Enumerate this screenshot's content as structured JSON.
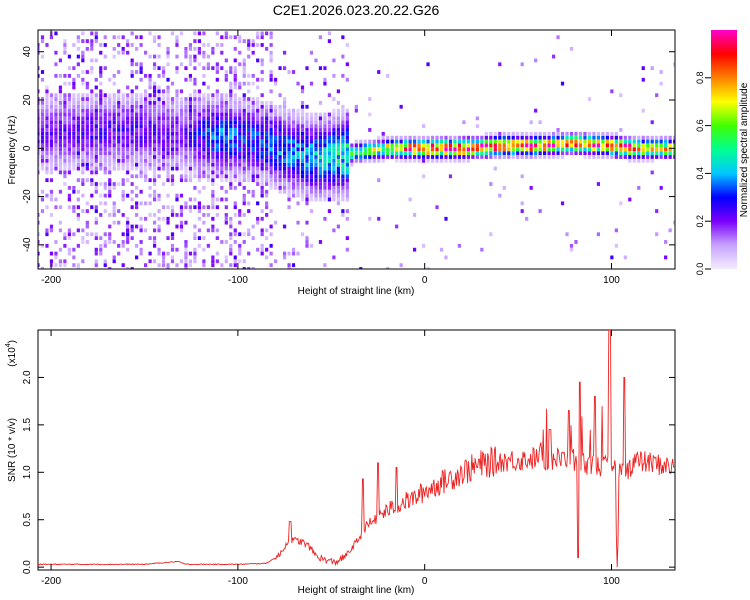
{
  "figure": {
    "title": "C2E1.2026.023.20.22.G26"
  },
  "chart_data": [
    {
      "type": "heatmap",
      "xlabel": "Height of straight line (km)",
      "ylabel": "Frequency (Hz)",
      "xlim": [
        -207,
        134
      ],
      "ylim": [
        -50,
        49
      ],
      "x_ticks": [
        "-200",
        "-100",
        "0",
        "100"
      ],
      "x_tick_values": [
        -200,
        -100,
        0,
        100
      ],
      "y_ticks": [
        "-40",
        "-20",
        "0",
        "20",
        "40"
      ],
      "y_tick_values": [
        -40,
        -20,
        0,
        20,
        40
      ],
      "colorbar": {
        "label": "Normalized spectral amplitude",
        "range": [
          0,
          1
        ],
        "ticks": [
          "0.0",
          "0.2",
          "0.4",
          "0.6",
          "0.8"
        ],
        "tick_values": [
          0.0,
          0.2,
          0.4,
          0.6,
          0.8
        ],
        "colormap": [
          "#f4ecff",
          "#c7a3ff",
          "#7b00ff",
          "#0000ff",
          "#00c8ff",
          "#00ff90",
          "#40ff00",
          "#ffff00",
          "#ff8000",
          "#ff0000",
          "#ff00cc"
        ]
      },
      "ridge": {
        "x": [
          -205,
          -180,
          -150,
          -130,
          -110,
          -95,
          -85,
          -75,
          -65,
          -55,
          -45,
          -38,
          -30,
          -20,
          -10,
          0,
          20,
          40,
          60,
          80,
          100,
          110,
          120,
          134
        ],
        "y": [
          6,
          7,
          7,
          6,
          5,
          4,
          2,
          -1,
          -3,
          -4,
          -3,
          -2,
          -1,
          0,
          0,
          0,
          0,
          1,
          1,
          2,
          1,
          0,
          0,
          0
        ],
        "peak_amplitude": [
          0.2,
          0.22,
          0.22,
          0.2,
          0.35,
          0.3,
          0.32,
          0.35,
          0.38,
          0.4,
          0.45,
          0.5,
          0.55,
          0.7,
          0.8,
          0.92,
          0.95,
          0.9,
          0.85,
          0.85,
          0.85,
          0.9,
          0.75,
          0.7
        ]
      },
      "grid": false
    },
    {
      "type": "line",
      "xlabel": "Height of straight line (km)",
      "ylabel": "SNR (10 * v/v)",
      "exponent_label": "(x10",
      "exponent_power": "4",
      "exponent_close": ")",
      "xlim": [
        -207,
        134
      ],
      "ylim": [
        -0.03,
        2.5
      ],
      "x_ticks": [
        "-200",
        "-100",
        "0",
        "100"
      ],
      "x_tick_values": [
        -200,
        -100,
        0,
        100
      ],
      "y_ticks": [
        "0.0",
        "0.5",
        "1.0",
        "1.5",
        "2.0"
      ],
      "y_tick_values": [
        0.0,
        0.5,
        1.0,
        1.5,
        2.0
      ],
      "color": "#ee2222",
      "envelope": {
        "x": [
          -207,
          -150,
          -132,
          -128,
          -100,
          -85,
          -78,
          -74,
          -70,
          -66,
          -62,
          -58,
          -54,
          -48,
          -42,
          -36,
          -30,
          -24,
          -18,
          -12,
          -6,
          0,
          10,
          20,
          30,
          40,
          50,
          60,
          70,
          80,
          90,
          100,
          108,
          112,
          120,
          134
        ],
        "y": [
          0.03,
          0.03,
          0.06,
          0.03,
          0.03,
          0.04,
          0.12,
          0.25,
          0.28,
          0.27,
          0.22,
          0.12,
          0.08,
          0.05,
          0.12,
          0.28,
          0.45,
          0.55,
          0.62,
          0.68,
          0.72,
          0.8,
          0.9,
          1.0,
          1.08,
          1.12,
          1.13,
          1.15,
          1.14,
          1.12,
          1.08,
          1.05,
          1.0,
          1.12,
          1.1,
          1.05
        ]
      },
      "spikes": [
        {
          "x": -72,
          "y": 0.48
        },
        {
          "x": -33,
          "y": 0.93
        },
        {
          "x": -25,
          "y": 1.1
        },
        {
          "x": -15,
          "y": 1.05
        },
        {
          "x": 67,
          "y": 1.45
        },
        {
          "x": 77,
          "y": 1.65
        },
        {
          "x": 82,
          "y": 0.1
        },
        {
          "x": 83,
          "y": 1.95
        },
        {
          "x": 91,
          "y": 1.8
        },
        {
          "x": 99,
          "y": 2.5
        },
        {
          "x": 103,
          "y": 0.0
        },
        {
          "x": 107,
          "y": 2.0
        }
      ],
      "grid": false
    }
  ]
}
